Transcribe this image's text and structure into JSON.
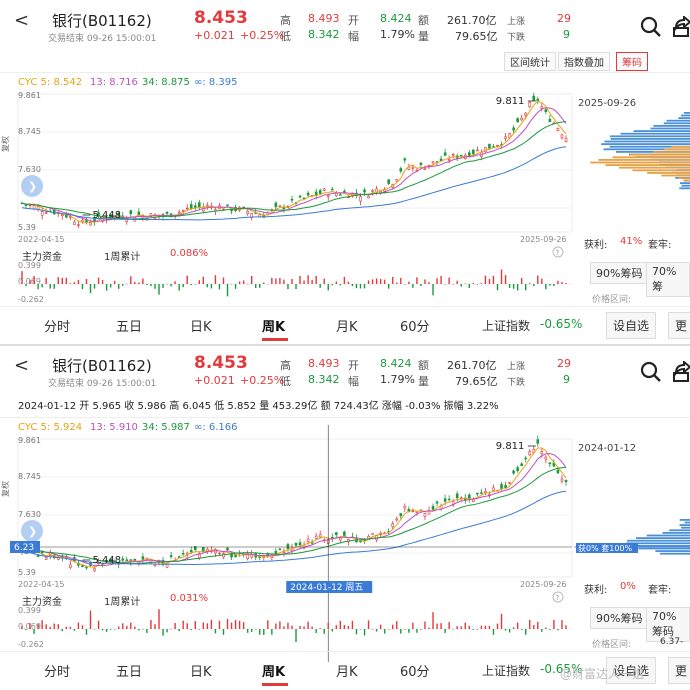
{
  "panels": [
    {
      "header": {
        "back": "<",
        "title": "银行(B01162)",
        "subtitle": "交易结束 09-26 15:00:01",
        "price": "8.453",
        "change": "+0.021",
        "change_pct": "+0.25%",
        "high_label": "高",
        "high": "8.493",
        "low_label": "低",
        "low": "8.342",
        "open_label": "开",
        "open": "8.424",
        "amp_label": "幅",
        "amp": "1.79%",
        "amount_label": "额",
        "amount": "261.70亿",
        "volume_label": "量",
        "volume": "79.65亿",
        "up_label": "上涨",
        "up_count": "29",
        "down_label": "下跌",
        "down_count": "9"
      },
      "tools": [
        "区间统计",
        "指数叠加",
        "筹码"
      ],
      "info_line": null,
      "cyc": {
        "cyc5": "CYC 5: 8.542",
        "cyc13": "13: 8.716",
        "cyc34": "34: 8.875",
        "cycinf": "∞: 8.395"
      },
      "yticks": [
        "9.861",
        "8.745",
        "7.630",
        "5.39"
      ],
      "max_label": "9.811",
      "min_label": "5.448",
      "start_date": "2022-04-15",
      "end_date": "2025-09-26",
      "right_date": "2025-09-26",
      "crosshair": null,
      "right_badge": null,
      "flow": {
        "label": "主力资金",
        "period": "1周累计",
        "value": "0.086%",
        "y1": "0.399",
        "y2": "0.069",
        "y3": "-0.262"
      },
      "chip": {
        "profit_label": "获利:",
        "profit_value": "41%",
        "trap_label": "套牢:",
        "btn90": "90%筹码",
        "btn70": "70%筹",
        "range_label": "价格区间:",
        "range_value": ""
      },
      "tabs": [
        "分时",
        "五日",
        "日K",
        "周K",
        "月K",
        "60分"
      ],
      "index_label": "上证指数",
      "index_change": "-0.65%",
      "add_btn": "设自选",
      "more_btn": "更"
    },
    {
      "header": {
        "back": "<",
        "title": "银行(B01162)",
        "subtitle": "交易结束 09-26 15:00:01",
        "price": "8.453",
        "change": "+0.021",
        "change_pct": "+0.25%",
        "high_label": "高",
        "high": "8.493",
        "low_label": "低",
        "low": "8.342",
        "open_label": "开",
        "open": "8.424",
        "amp_label": "幅",
        "amp": "1.79%",
        "amount_label": "额",
        "amount": "261.70亿",
        "volume_label": "量",
        "volume": "79.65亿",
        "up_label": "上涨",
        "up_count": "29",
        "down_label": "下跌",
        "down_count": "9"
      },
      "tools": [],
      "info_line": "2024-01-12  开  5.965  收  5.986  高  6.045  低  5.852  量  453.29亿  额  724.43亿  涨幅  -0.03%  振幅  3.22%",
      "cyc": {
        "cyc5": "CYC 5: 5.924",
        "cyc13": "13: 5.910",
        "cyc34": "34: 5.987",
        "cycinf": "∞: 6.166"
      },
      "yticks": [
        "9.861",
        "8.745",
        "7.630",
        "5.39"
      ],
      "max_label": "9.811",
      "min_label": "5.448",
      "start_date": "2022-04-15",
      "end_date": "2025-09-26",
      "right_date": "2024-01-12",
      "crosshair": {
        "price": "6.23",
        "date": "2024-01-12 周五"
      },
      "right_badge": "获0% 套100%",
      "flow": {
        "label": "主力资金",
        "period": "1周累计",
        "value": "0.031%",
        "y1": "0.399",
        "y2": "0.069",
        "y3": "-0.262"
      },
      "chip": {
        "profit_label": "获利:",
        "profit_value": "0%",
        "trap_label": "套牢:",
        "btn90": "90%筹码",
        "btn70": "70%筹码",
        "range_label": "价格区间:",
        "range_value": "6.37-"
      },
      "tabs": [
        "分时",
        "五日",
        "日K",
        "周K",
        "月K",
        "60分"
      ],
      "index_label": "上证指数",
      "index_change": "-0.65%",
      "add_btn": "设自选",
      "more_btn": "更"
    }
  ],
  "watermark": "@财富达人一姐",
  "colors": {
    "up": "#e4393c",
    "down": "#1a9a3c",
    "ma5": "#e8a317",
    "ma13": "#c050c0",
    "ma34": "#1a9a3c",
    "mainf": "#3a7bd5",
    "chip_blue": "#4a90d9",
    "chip_orange": "#e8a040"
  }
}
